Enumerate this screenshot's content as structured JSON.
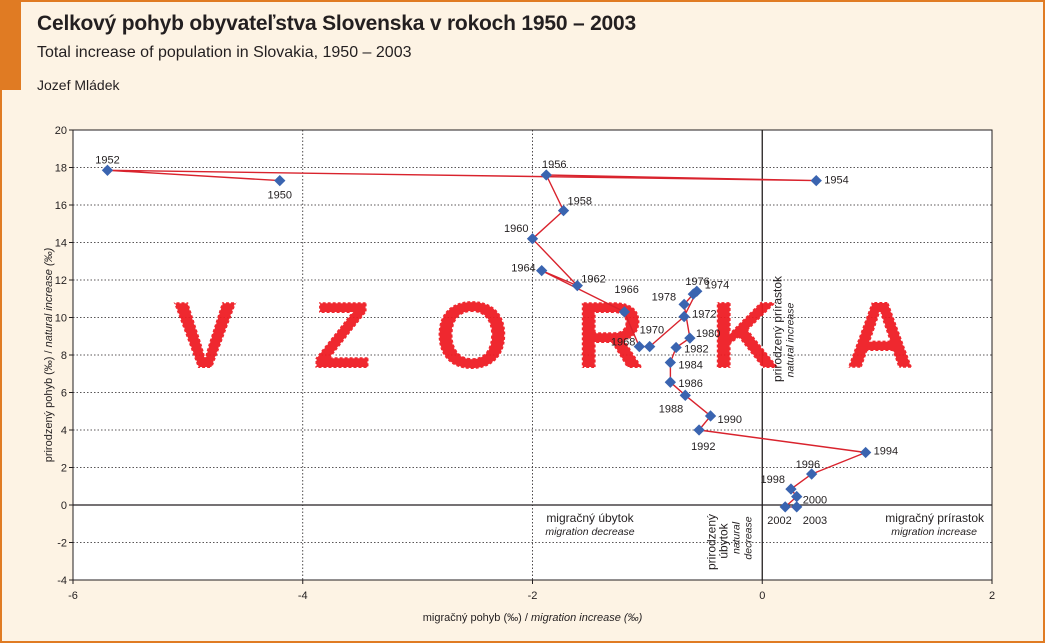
{
  "header": {
    "title": "Celkový pohyb obyvateľstva Slovenska v rokoch 1950 – 2003",
    "subtitle": "Total increase of population in Slovakia, 1950 – 2003",
    "author": "Jozef Mládek"
  },
  "watermark": "VZORKA",
  "chart_data": {
    "type": "scatter",
    "connected": true,
    "xlabel": "migračný pohyb (‰)",
    "xlabel_en": "migration increase (‰)",
    "ylabel": "prirodzený pohyb (‰)",
    "ylabel_en": "natural increase (‰)",
    "xlim": [
      -6,
      2
    ],
    "ylim": [
      -4,
      20
    ],
    "xticks": [
      -6,
      -4,
      -2,
      0,
      2
    ],
    "yticks": [
      -4,
      -2,
      0,
      2,
      4,
      6,
      8,
      10,
      12,
      14,
      16,
      18,
      20
    ],
    "grid": "horizontal dotted",
    "series_color": "#d9232d",
    "marker_color": "#3a64b0",
    "quadrant_labels": {
      "migration_decrease": {
        "sk": "migračný úbytok",
        "en": "migration decrease"
      },
      "migration_increase": {
        "sk": "migračný prírastok",
        "en": "migration increase"
      },
      "natural_increase": {
        "sk": "prirodzený prírastok",
        "en": "natural increase"
      },
      "natural_decrease": {
        "sk": "prirodzený úbytok",
        "en": "natural decrease"
      }
    },
    "points": [
      {
        "year": 1950,
        "x": -4.2,
        "y": 17.3
      },
      {
        "year": 1952,
        "x": -5.7,
        "y": 17.85
      },
      {
        "year": 1954,
        "x": 0.47,
        "y": 17.3
      },
      {
        "year": 1956,
        "x": -1.88,
        "y": 17.6
      },
      {
        "year": 1958,
        "x": -1.73,
        "y": 15.7
      },
      {
        "year": 1960,
        "x": -2.0,
        "y": 14.2
      },
      {
        "year": 1962,
        "x": -1.61,
        "y": 11.7
      },
      {
        "year": 1964,
        "x": -1.92,
        "y": 12.5
      },
      {
        "year": 1966,
        "x": -1.2,
        "y": 10.3
      },
      {
        "year": 1968,
        "x": -1.07,
        "y": 8.45
      },
      {
        "year": 1970,
        "x": -0.98,
        "y": 8.45
      },
      {
        "year": 1972,
        "x": -0.68,
        "y": 10.05
      },
      {
        "year": 1974,
        "x": -0.57,
        "y": 11.4
      },
      {
        "year": 1976,
        "x": -0.6,
        "y": 11.25
      },
      {
        "year": 1978,
        "x": -0.68,
        "y": 10.7
      },
      {
        "year": 1980,
        "x": -0.63,
        "y": 8.9
      },
      {
        "year": 1982,
        "x": -0.75,
        "y": 8.4
      },
      {
        "year": 1984,
        "x": -0.8,
        "y": 7.6
      },
      {
        "year": 1986,
        "x": -0.8,
        "y": 6.55
      },
      {
        "year": 1988,
        "x": -0.67,
        "y": 5.85
      },
      {
        "year": 1990,
        "x": -0.45,
        "y": 4.75
      },
      {
        "year": 1992,
        "x": -0.55,
        "y": 4.0
      },
      {
        "year": 1994,
        "x": 0.9,
        "y": 2.8
      },
      {
        "year": 1996,
        "x": 0.43,
        "y": 1.65
      },
      {
        "year": 1998,
        "x": 0.25,
        "y": 0.85
      },
      {
        "year": 2000,
        "x": 0.3,
        "y": 0.45
      },
      {
        "year": 2002,
        "x": 0.2,
        "y": -0.1
      },
      {
        "year": 2003,
        "x": 0.3,
        "y": -0.1
      }
    ]
  }
}
